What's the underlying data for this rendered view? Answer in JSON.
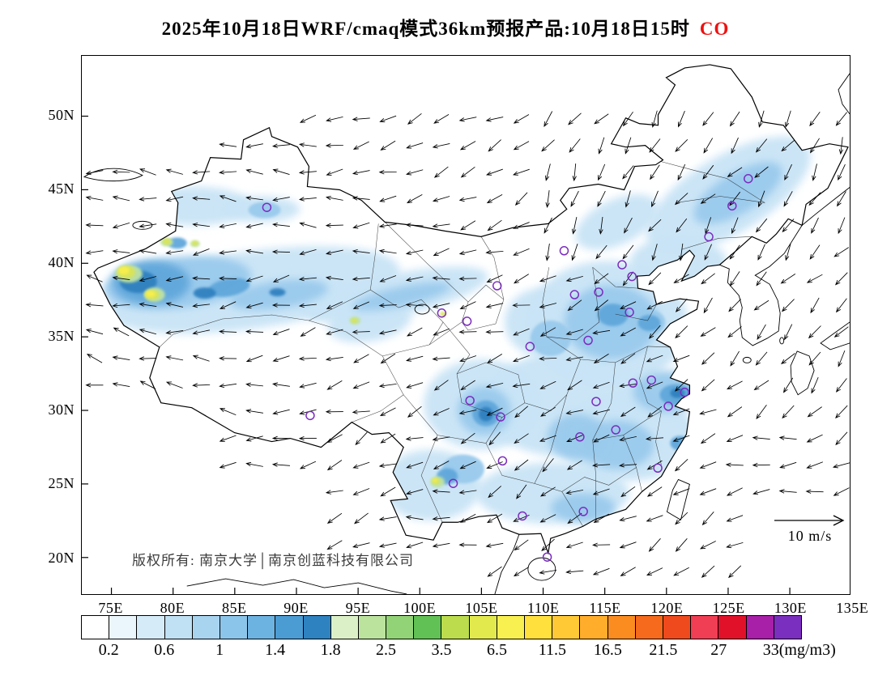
{
  "title": {
    "text": "2025年10月18日WRF/cmaq模式36km预报产品:10月18日15时",
    "species": "CO",
    "species_color": "#ee1111"
  },
  "axes": {
    "y_ticks": [
      "50N",
      "45N",
      "40N",
      "35N",
      "30N",
      "25N",
      "20N"
    ],
    "x_ticks": [
      "75E",
      "80E",
      "85E",
      "90E",
      "95E",
      "100E",
      "105E",
      "110E",
      "115E",
      "120E",
      "125E",
      "130E",
      "135E"
    ]
  },
  "map": {
    "copyright": "版权所有: 南京大学│南京创蓝科技有限公司",
    "wind_scale_label": "10 m/s",
    "marker_color": "#7B2CBF",
    "wind": {
      "spacing": 33,
      "length": 21
    },
    "city_markers": [
      [
        87.6,
        43.8
      ],
      [
        111.7,
        40.85
      ],
      [
        116.4,
        39.9
      ],
      [
        117.2,
        39.1
      ],
      [
        114.5,
        38.04
      ],
      [
        112.55,
        37.87
      ],
      [
        106.27,
        38.47
      ],
      [
        103.83,
        36.06
      ],
      [
        101.78,
        36.62
      ],
      [
        108.94,
        34.34
      ],
      [
        113.65,
        34.76
      ],
      [
        117.0,
        36.67
      ],
      [
        123.43,
        41.8
      ],
      [
        125.32,
        43.9
      ],
      [
        126.63,
        45.75
      ],
      [
        121.47,
        31.23
      ],
      [
        118.78,
        32.06
      ],
      [
        117.28,
        31.86
      ],
      [
        120.15,
        30.28
      ],
      [
        114.3,
        30.6
      ],
      [
        112.98,
        28.2
      ],
      [
        115.89,
        28.68
      ],
      [
        119.3,
        26.08
      ],
      [
        113.26,
        23.13
      ],
      [
        108.32,
        22.82
      ],
      [
        110.33,
        20.03
      ],
      [
        106.71,
        26.57
      ],
      [
        104.07,
        30.67
      ],
      [
        106.55,
        29.56
      ],
      [
        102.71,
        25.04
      ],
      [
        91.11,
        29.65
      ]
    ]
  },
  "shading": [
    [
      210,
      290,
      185,
      48,
      -8,
      "#C8E4F6"
    ],
    [
      390,
      296,
      115,
      26,
      -12,
      "#C8E4F6"
    ],
    [
      140,
      186,
      70,
      24,
      0,
      "#C8E4F6"
    ],
    [
      222,
      190,
      48,
      16,
      0,
      "#C8E4F6"
    ],
    [
      800,
      172,
      115,
      48,
      -31,
      "#C8E4F6"
    ],
    [
      738,
      256,
      60,
      32,
      0,
      "#C8E4F6"
    ],
    [
      650,
      332,
      100,
      78,
      0,
      "#C8E4F6"
    ],
    [
      600,
      432,
      105,
      65,
      0,
      "#C8E4F6"
    ],
    [
      676,
      472,
      85,
      55,
      0,
      "#C8E4F6"
    ],
    [
      582,
      542,
      95,
      38,
      0,
      "#C8E4F6"
    ],
    [
      495,
      432,
      72,
      56,
      0,
      "#C8E4F6"
    ],
    [
      432,
      532,
      62,
      44,
      0,
      "#C8E4F6"
    ],
    [
      356,
      330,
      52,
      24,
      -10,
      "#C8E4F6"
    ],
    [
      568,
      330,
      45,
      42,
      0,
      "#C8E4F6"
    ],
    [
      300,
      300,
      40,
      18,
      -10,
      "#C8E4F6"
    ],
    [
      662,
      206,
      55,
      28,
      -25,
      "#C8E4F6"
    ],
    [
      118,
      281,
      92,
      32,
      -6,
      "#99C9EC"
    ],
    [
      243,
      296,
      62,
      17,
      -8,
      "#99C9EC"
    ],
    [
      396,
      298,
      62,
      12,
      -12,
      "#99C9EC"
    ],
    [
      655,
      330,
      58,
      46,
      0,
      "#99C9EC"
    ],
    [
      498,
      440,
      33,
      30,
      0,
      "#99C9EC"
    ],
    [
      724,
      416,
      42,
      26,
      0,
      "#99C9EC"
    ],
    [
      662,
      482,
      46,
      30,
      0,
      "#99C9EC"
    ],
    [
      612,
      472,
      36,
      28,
      0,
      "#99C9EC"
    ],
    [
      812,
      170,
      62,
      25,
      -31,
      "#99C9EC"
    ],
    [
      472,
      512,
      26,
      18,
      0,
      "#99C9EC"
    ],
    [
      226,
      191,
      20,
      10,
      0,
      "#99C9EC"
    ],
    [
      700,
      330,
      22,
      16,
      0,
      "#99C9EC"
    ],
    [
      580,
      350,
      25,
      22,
      0,
      "#99C9EC"
    ],
    [
      620,
      560,
      40,
      18,
      0,
      "#99C9EC"
    ],
    [
      86,
      281,
      48,
      27,
      0,
      "#5FA6DA"
    ],
    [
      182,
      287,
      26,
      11,
      -10,
      "#5FA6DA"
    ],
    [
      735,
      420,
      20,
      13,
      0,
      "#5FA6DA"
    ],
    [
      500,
      443,
      17,
      16,
      0,
      "#5FA6DA"
    ],
    [
      657,
      321,
      19,
      14,
      0,
      "#5FA6DA"
    ],
    [
      452,
      521,
      13,
      10,
      0,
      "#5FA6DA"
    ],
    [
      702,
      331,
      14,
      10,
      0,
      "#5FA6DA"
    ],
    [
      118,
      232,
      12,
      7,
      0,
      "#5FA6DA"
    ],
    [
      740,
      480,
      12,
      9,
      0,
      "#5FA6DA"
    ],
    [
      70,
      280,
      23,
      14,
      0,
      "#2F7FBF"
    ],
    [
      152,
      294,
      14,
      7,
      0,
      "#2F7FBF"
    ],
    [
      737,
      418,
      9,
      6,
      0,
      "#2F7FBF"
    ],
    [
      500,
      444,
      9,
      9,
      0,
      "#2F7FBF"
    ],
    [
      242,
      293,
      10,
      5,
      0,
      "#2F7FBF"
    ],
    [
      58,
      270,
      17,
      11,
      0,
      "#BFE3A4"
    ],
    [
      90,
      296,
      13,
      9,
      0,
      "#BFE3A4"
    ],
    [
      105,
      231,
      8,
      5,
      0,
      "#BFE3A4"
    ],
    [
      140,
      233,
      6,
      4,
      0,
      "#BFE3A4"
    ],
    [
      338,
      328,
      7,
      5,
      0,
      "#BFE3A4"
    ],
    [
      440,
      528,
      9,
      7,
      0,
      "#BFE3A4"
    ],
    [
      55,
      268,
      11,
      8,
      0,
      "#D9E455"
    ],
    [
      87,
      296,
      9,
      6,
      0,
      "#D9E455"
    ],
    [
      105,
      230,
      5,
      4,
      0,
      "#D9E455"
    ],
    [
      140,
      232,
      4,
      3,
      0,
      "#D9E455"
    ],
    [
      337,
      328,
      4,
      3,
      0,
      "#D9E455"
    ],
    [
      438,
      527,
      5,
      4,
      0,
      "#D9E455"
    ],
    [
      447,
      320,
      4,
      3,
      0,
      "#D9E455"
    ],
    [
      52,
      266,
      7,
      5,
      0,
      "#F8EF4E"
    ],
    [
      85,
      295,
      6,
      4,
      0,
      "#F8EF4E"
    ],
    [
      437,
      526,
      3,
      2,
      0,
      "#F8EF4E"
    ]
  ],
  "colorbar": {
    "unit": "mg/m3",
    "labels": [
      "0.2",
      "0.6",
      "1",
      "1.4",
      "1.8",
      "2.5",
      "3.5",
      "6.5",
      "11.5",
      "16.5",
      "21.5",
      "27",
      "33(mg/m3)"
    ],
    "colors": [
      "#FFFFFF",
      "#EAF5FC",
      "#D6EBF8",
      "#C0E0F4",
      "#A8D4F0",
      "#8CC5EA",
      "#6DB3E2",
      "#4C9CD4",
      "#2E82C0",
      "#DCF0C8",
      "#BBE39E",
      "#93D377",
      "#62C154",
      "#BCDC4E",
      "#E2E94D",
      "#F8F051",
      "#FFE03C",
      "#FFC936",
      "#FFAD2B",
      "#FB8C20",
      "#F56A1C",
      "#EF4A1E",
      "#F03E55",
      "#E2112A",
      "#A81FA8",
      "#7B2FBE"
    ]
  },
  "chart_data": {
    "type": "map",
    "variable": "CO",
    "unit": "mg/m3",
    "model": "WRF/cmaq 36km",
    "scale_breaks": [
      0.2,
      0.6,
      1,
      1.4,
      1.8,
      2.5,
      3.5,
      6.5,
      11.5,
      16.5,
      21.5,
      27,
      33
    ],
    "lon_range": [
      75,
      135
    ],
    "lat_range": [
      20,
      50
    ]
  }
}
